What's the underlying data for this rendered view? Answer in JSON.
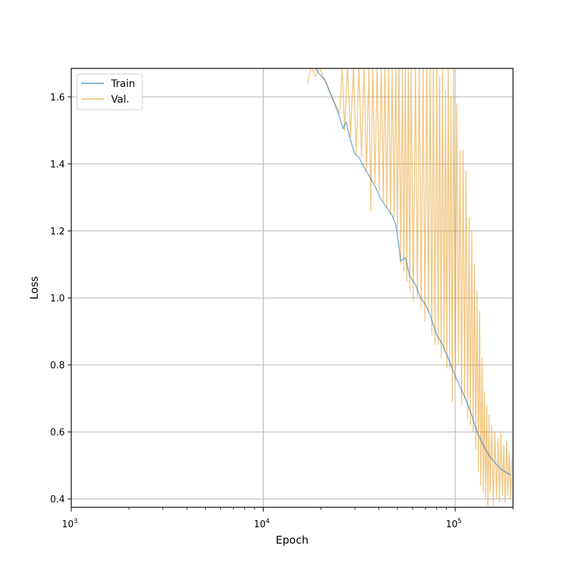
{
  "chart_data": {
    "type": "line",
    "xlabel": "Epoch",
    "ylabel": "Loss",
    "x_scale": "log",
    "xlim": [
      1000,
      200000
    ],
    "ylim": [
      0.375,
      1.685
    ],
    "grid": true,
    "legend_position": "top-left",
    "x_major_ticks": [
      {
        "value": 1000,
        "mantissa": "10",
        "exp": "3"
      },
      {
        "value": 10000,
        "mantissa": "10",
        "exp": "4"
      },
      {
        "value": 100000,
        "mantissa": "10",
        "exp": "5"
      }
    ],
    "y_ticks": [
      {
        "value": 0.4,
        "label": "0.4"
      },
      {
        "value": 0.6,
        "label": "0.6"
      },
      {
        "value": 0.8,
        "label": "0.8"
      },
      {
        "value": 1.0,
        "label": "1.0"
      },
      {
        "value": 1.2,
        "label": "1.2"
      },
      {
        "value": 1.4,
        "label": "1.4"
      },
      {
        "value": 1.6,
        "label": "1.6"
      }
    ],
    "series": [
      {
        "name": "Train",
        "color": "#1f77b4",
        "opacity": 0.55,
        "points": [
          [
            18500,
            1.69
          ],
          [
            19500,
            1.67
          ],
          [
            21000,
            1.65
          ],
          [
            22000,
            1.62
          ],
          [
            23500,
            1.58
          ],
          [
            25000,
            1.54
          ],
          [
            26000,
            1.505
          ],
          [
            27000,
            1.525
          ],
          [
            28500,
            1.47
          ],
          [
            30000,
            1.43
          ],
          [
            31500,
            1.42
          ],
          [
            33500,
            1.39
          ],
          [
            36000,
            1.36
          ],
          [
            38500,
            1.33
          ],
          [
            41000,
            1.295
          ],
          [
            44000,
            1.27
          ],
          [
            47000,
            1.245
          ],
          [
            49000,
            1.22
          ],
          [
            50500,
            1.17
          ],
          [
            52000,
            1.11
          ],
          [
            55000,
            1.12
          ],
          [
            58000,
            1.065
          ],
          [
            62000,
            1.04
          ],
          [
            66000,
            1.0
          ],
          [
            70000,
            0.98
          ],
          [
            75000,
            0.94
          ],
          [
            80000,
            0.89
          ],
          [
            86000,
            0.86
          ],
          [
            92000,
            0.82
          ],
          [
            98000,
            0.78
          ],
          [
            105000,
            0.74
          ],
          [
            113000,
            0.7
          ],
          [
            121000,
            0.655
          ],
          [
            130000,
            0.6
          ],
          [
            140000,
            0.56
          ],
          [
            150000,
            0.53
          ],
          [
            160000,
            0.51
          ],
          [
            172000,
            0.49
          ],
          [
            185000,
            0.478
          ],
          [
            195000,
            0.472
          ]
        ]
      },
      {
        "name": "Val.",
        "color": "#e89a20",
        "opacity": 0.55,
        "points": [
          [
            17000,
            1.64
          ],
          [
            17800,
            1.69
          ],
          [
            18700,
            1.66
          ],
          [
            19500,
            1.69
          ],
          [
            25000,
            1.55
          ],
          [
            25800,
            1.69
          ],
          [
            26500,
            1.5
          ],
          [
            27500,
            1.69
          ],
          [
            28500,
            1.48
          ],
          [
            29500,
            1.69
          ],
          [
            30500,
            1.43
          ],
          [
            31500,
            1.69
          ],
          [
            32500,
            1.42
          ],
          [
            33500,
            1.69
          ],
          [
            34500,
            1.38
          ],
          [
            35500,
            1.69
          ],
          [
            36300,
            1.26
          ],
          [
            37200,
            1.69
          ],
          [
            38200,
            1.34
          ],
          [
            39200,
            1.69
          ],
          [
            40200,
            1.32
          ],
          [
            41200,
            1.69
          ],
          [
            42200,
            1.29
          ],
          [
            43000,
            1.69
          ],
          [
            44000,
            1.27
          ],
          [
            45000,
            1.69
          ],
          [
            46000,
            1.25
          ],
          [
            47000,
            1.69
          ],
          [
            48000,
            1.24
          ],
          [
            49000,
            1.69
          ],
          [
            50000,
            1.2
          ],
          [
            51000,
            1.69
          ],
          [
            52000,
            1.1
          ],
          [
            53000,
            1.69
          ],
          [
            54000,
            1.08
          ],
          [
            55000,
            1.69
          ],
          [
            56000,
            1.05
          ],
          [
            57000,
            1.69
          ],
          [
            58000,
            1.02
          ],
          [
            59000,
            1.69
          ],
          [
            60500,
            0.99
          ],
          [
            62000,
            1.69
          ],
          [
            63500,
            1.0
          ],
          [
            65000,
            1.69
          ],
          [
            66500,
            0.97
          ],
          [
            68000,
            1.69
          ],
          [
            69500,
            0.93
          ],
          [
            71000,
            1.69
          ],
          [
            72500,
            0.96
          ],
          [
            74000,
            1.69
          ],
          [
            75500,
            0.89
          ],
          [
            77000,
            1.69
          ],
          [
            78500,
            0.86
          ],
          [
            80000,
            1.69
          ],
          [
            81500,
            0.86
          ],
          [
            83000,
            1.66
          ],
          [
            84500,
            0.82
          ],
          [
            86000,
            1.69
          ],
          [
            87500,
            0.84
          ],
          [
            89000,
            1.62
          ],
          [
            90500,
            0.79
          ],
          [
            92000,
            1.69
          ],
          [
            93500,
            0.79
          ],
          [
            95000,
            1.6
          ],
          [
            96500,
            0.69
          ],
          [
            98000,
            1.69
          ],
          [
            100000,
            0.75
          ],
          [
            102000,
            1.58
          ],
          [
            104000,
            0.8
          ],
          [
            106000,
            1.44
          ],
          [
            108000,
            0.68
          ],
          [
            110000,
            1.44
          ],
          [
            112000,
            0.7
          ],
          [
            114000,
            1.38
          ],
          [
            116000,
            0.64
          ],
          [
            118000,
            1.24
          ],
          [
            120000,
            0.62
          ],
          [
            122000,
            1.2
          ],
          [
            124000,
            0.6
          ],
          [
            126000,
            1.1
          ],
          [
            128000,
            0.55
          ],
          [
            130000,
            1.02
          ],
          [
            132000,
            0.48
          ],
          [
            134000,
            0.96
          ],
          [
            136000,
            0.44
          ],
          [
            138000,
            0.82
          ],
          [
            140000,
            0.42
          ],
          [
            142000,
            0.72
          ],
          [
            144000,
            0.4
          ],
          [
            146000,
            0.68
          ],
          [
            148000,
            0.38
          ],
          [
            150000,
            0.65
          ],
          [
            152000,
            0.42
          ],
          [
            155000,
            0.62
          ],
          [
            158000,
            0.38
          ],
          [
            161000,
            0.6
          ],
          [
            164000,
            0.4
          ],
          [
            167000,
            0.58
          ],
          [
            170000,
            0.39
          ],
          [
            173000,
            0.6
          ],
          [
            176000,
            0.41
          ],
          [
            179000,
            0.56
          ],
          [
            182000,
            0.39
          ],
          [
            185000,
            0.57
          ],
          [
            188000,
            0.41
          ],
          [
            191000,
            0.54
          ],
          [
            194000,
            0.4
          ],
          [
            197000,
            0.52
          ]
        ]
      }
    ]
  }
}
